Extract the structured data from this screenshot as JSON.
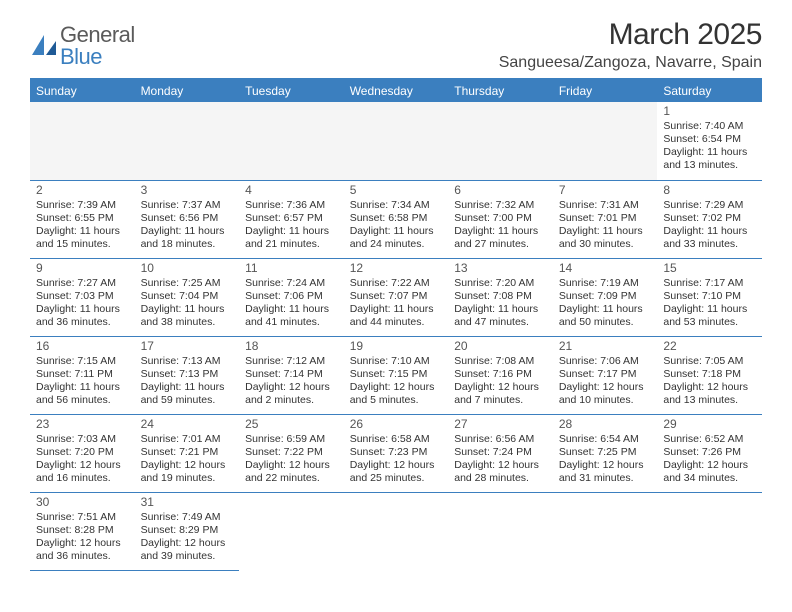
{
  "logo": {
    "word1": "General",
    "word2": "Blue"
  },
  "title": "March 2025",
  "location": "Sangueesa/Zangoza, Navarre, Spain",
  "colors": {
    "header_bg": "#3b7fbf",
    "header_text": "#ffffff",
    "border": "#3b7fbf",
    "text": "#333333",
    "logo_gray": "#5a5a5a",
    "logo_blue": "#3b7fbf"
  },
  "weekdays": [
    "Sunday",
    "Monday",
    "Tuesday",
    "Wednesday",
    "Thursday",
    "Friday",
    "Saturday"
  ],
  "weeks": [
    [
      null,
      null,
      null,
      null,
      null,
      null,
      {
        "n": "1",
        "sunrise": "7:40 AM",
        "sunset": "6:54 PM",
        "daylight": "11 hours and 13 minutes."
      }
    ],
    [
      {
        "n": "2",
        "sunrise": "7:39 AM",
        "sunset": "6:55 PM",
        "daylight": "11 hours and 15 minutes."
      },
      {
        "n": "3",
        "sunrise": "7:37 AM",
        "sunset": "6:56 PM",
        "daylight": "11 hours and 18 minutes."
      },
      {
        "n": "4",
        "sunrise": "7:36 AM",
        "sunset": "6:57 PM",
        "daylight": "11 hours and 21 minutes."
      },
      {
        "n": "5",
        "sunrise": "7:34 AM",
        "sunset": "6:58 PM",
        "daylight": "11 hours and 24 minutes."
      },
      {
        "n": "6",
        "sunrise": "7:32 AM",
        "sunset": "7:00 PM",
        "daylight": "11 hours and 27 minutes."
      },
      {
        "n": "7",
        "sunrise": "7:31 AM",
        "sunset": "7:01 PM",
        "daylight": "11 hours and 30 minutes."
      },
      {
        "n": "8",
        "sunrise": "7:29 AM",
        "sunset": "7:02 PM",
        "daylight": "11 hours and 33 minutes."
      }
    ],
    [
      {
        "n": "9",
        "sunrise": "7:27 AM",
        "sunset": "7:03 PM",
        "daylight": "11 hours and 36 minutes."
      },
      {
        "n": "10",
        "sunrise": "7:25 AM",
        "sunset": "7:04 PM",
        "daylight": "11 hours and 38 minutes."
      },
      {
        "n": "11",
        "sunrise": "7:24 AM",
        "sunset": "7:06 PM",
        "daylight": "11 hours and 41 minutes."
      },
      {
        "n": "12",
        "sunrise": "7:22 AM",
        "sunset": "7:07 PM",
        "daylight": "11 hours and 44 minutes."
      },
      {
        "n": "13",
        "sunrise": "7:20 AM",
        "sunset": "7:08 PM",
        "daylight": "11 hours and 47 minutes."
      },
      {
        "n": "14",
        "sunrise": "7:19 AM",
        "sunset": "7:09 PM",
        "daylight": "11 hours and 50 minutes."
      },
      {
        "n": "15",
        "sunrise": "7:17 AM",
        "sunset": "7:10 PM",
        "daylight": "11 hours and 53 minutes."
      }
    ],
    [
      {
        "n": "16",
        "sunrise": "7:15 AM",
        "sunset": "7:11 PM",
        "daylight": "11 hours and 56 minutes."
      },
      {
        "n": "17",
        "sunrise": "7:13 AM",
        "sunset": "7:13 PM",
        "daylight": "11 hours and 59 minutes."
      },
      {
        "n": "18",
        "sunrise": "7:12 AM",
        "sunset": "7:14 PM",
        "daylight": "12 hours and 2 minutes."
      },
      {
        "n": "19",
        "sunrise": "7:10 AM",
        "sunset": "7:15 PM",
        "daylight": "12 hours and 5 minutes."
      },
      {
        "n": "20",
        "sunrise": "7:08 AM",
        "sunset": "7:16 PM",
        "daylight": "12 hours and 7 minutes."
      },
      {
        "n": "21",
        "sunrise": "7:06 AM",
        "sunset": "7:17 PM",
        "daylight": "12 hours and 10 minutes."
      },
      {
        "n": "22",
        "sunrise": "7:05 AM",
        "sunset": "7:18 PM",
        "daylight": "12 hours and 13 minutes."
      }
    ],
    [
      {
        "n": "23",
        "sunrise": "7:03 AM",
        "sunset": "7:20 PM",
        "daylight": "12 hours and 16 minutes."
      },
      {
        "n": "24",
        "sunrise": "7:01 AM",
        "sunset": "7:21 PM",
        "daylight": "12 hours and 19 minutes."
      },
      {
        "n": "25",
        "sunrise": "6:59 AM",
        "sunset": "7:22 PM",
        "daylight": "12 hours and 22 minutes."
      },
      {
        "n": "26",
        "sunrise": "6:58 AM",
        "sunset": "7:23 PM",
        "daylight": "12 hours and 25 minutes."
      },
      {
        "n": "27",
        "sunrise": "6:56 AM",
        "sunset": "7:24 PM",
        "daylight": "12 hours and 28 minutes."
      },
      {
        "n": "28",
        "sunrise": "6:54 AM",
        "sunset": "7:25 PM",
        "daylight": "12 hours and 31 minutes."
      },
      {
        "n": "29",
        "sunrise": "6:52 AM",
        "sunset": "7:26 PM",
        "daylight": "12 hours and 34 minutes."
      }
    ],
    [
      {
        "n": "30",
        "sunrise": "7:51 AM",
        "sunset": "8:28 PM",
        "daylight": "12 hours and 36 minutes."
      },
      {
        "n": "31",
        "sunrise": "7:49 AM",
        "sunset": "8:29 PM",
        "daylight": "12 hours and 39 minutes."
      },
      null,
      null,
      null,
      null,
      null
    ]
  ],
  "labels": {
    "sunrise": "Sunrise:",
    "sunset": "Sunset:",
    "daylight": "Daylight:"
  }
}
